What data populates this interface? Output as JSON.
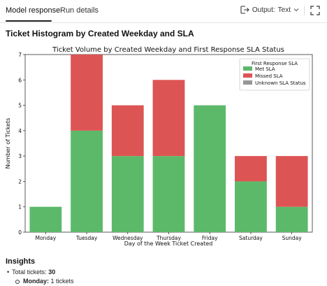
{
  "tabs": [
    {
      "label": "Model response",
      "active": true
    },
    {
      "label": "Run details",
      "active": false
    }
  ],
  "output": {
    "label": "Output:",
    "value": "Text"
  },
  "section_title": "Ticket Histogram by Created Weekday and SLA",
  "chart_data": {
    "type": "bar",
    "stacked": true,
    "title": "Ticket Volume by Created Weekday and First Response SLA Status",
    "xlabel": "Day of the Week Ticket Created",
    "ylabel": "Number of Tickets",
    "ylim": [
      0,
      7
    ],
    "yticks": [
      "0",
      "1",
      "2",
      "3",
      "4",
      "5",
      "6",
      "7"
    ],
    "grid": false,
    "legend_title": "First Response SLA",
    "legend_position": "top-right",
    "categories": [
      "Monday",
      "Tuesday",
      "Wednesday",
      "Thursday",
      "Friday",
      "Saturday",
      "Sunday"
    ],
    "series": [
      {
        "name": "Met SLA",
        "color": "#5cb96a",
        "values": [
          1,
          4,
          3,
          3,
          5,
          2,
          1
        ]
      },
      {
        "name": "Missed SLA",
        "color": "#dd5454",
        "values": [
          0,
          3,
          2,
          3,
          0,
          1,
          2
        ]
      },
      {
        "name": "Unknown SLA Status",
        "color": "#969696",
        "values": [
          0,
          0,
          0,
          0,
          0,
          0,
          0
        ]
      }
    ]
  },
  "insights": {
    "title": "Insights",
    "total_label": "Total tickets:",
    "total_value": "30",
    "monday_label": "Monday:",
    "monday_value": "1 tickets"
  }
}
